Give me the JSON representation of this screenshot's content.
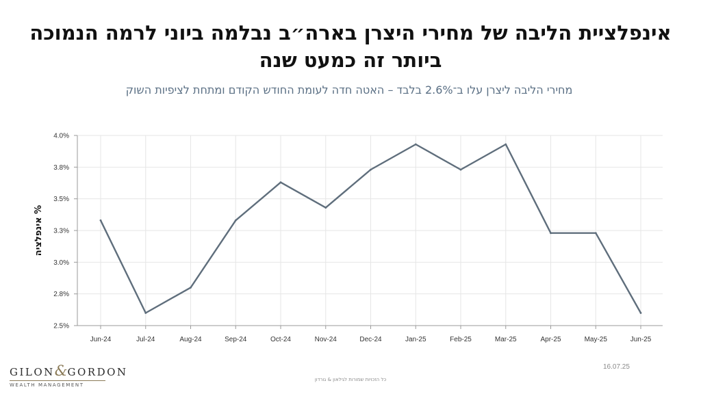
{
  "title": "אינפלציית הליבה של מחירי היצרן בארה״ב נבלמה ביוני לרמה הנמוכה ביותר זה כמעט שנה",
  "subtitle": "מחירי הליבה ליצרן עלו ב־2.6% בלבד – האטה חדה לעומת החודש הקודם ומתחת לציפיות השוק",
  "date": "16.07.25",
  "footer": "כל הזכויות שמורות לגילאון & גורדון",
  "logo": {
    "main_left": "GILON",
    "amp": "&",
    "main_right": "GORDON",
    "sub": "WEALTH MANAGEMENT"
  },
  "colors": {
    "line": "#5f6e7c",
    "grid": "#e6e6e6",
    "axis": "#9a9a9a"
  },
  "chart_data": {
    "type": "line",
    "title": "",
    "xlabel": "",
    "ylabel": "% אינפלציה",
    "categories": [
      "Jun-24",
      "Jul-24",
      "Aug-24",
      "Sep-24",
      "Oct-24",
      "Nov-24",
      "Dec-24",
      "Jan-25",
      "Feb-25",
      "Mar-25",
      "Apr-25",
      "May-25",
      "Jun-25"
    ],
    "values": [
      3.33,
      2.6,
      2.8,
      3.33,
      3.63,
      3.43,
      3.73,
      3.93,
      3.73,
      3.93,
      3.23,
      3.23,
      2.6
    ],
    "ylim": [
      2.5,
      4.0
    ],
    "yticks": [
      2.5,
      2.75,
      3.0,
      3.25,
      3.5,
      3.75,
      4.0
    ],
    "ytick_labels": [
      "2.5%",
      "2.8%",
      "3.0%",
      "3.3%",
      "3.5%",
      "3.8%",
      "4.0%"
    ],
    "grid": true,
    "legend": "none"
  }
}
